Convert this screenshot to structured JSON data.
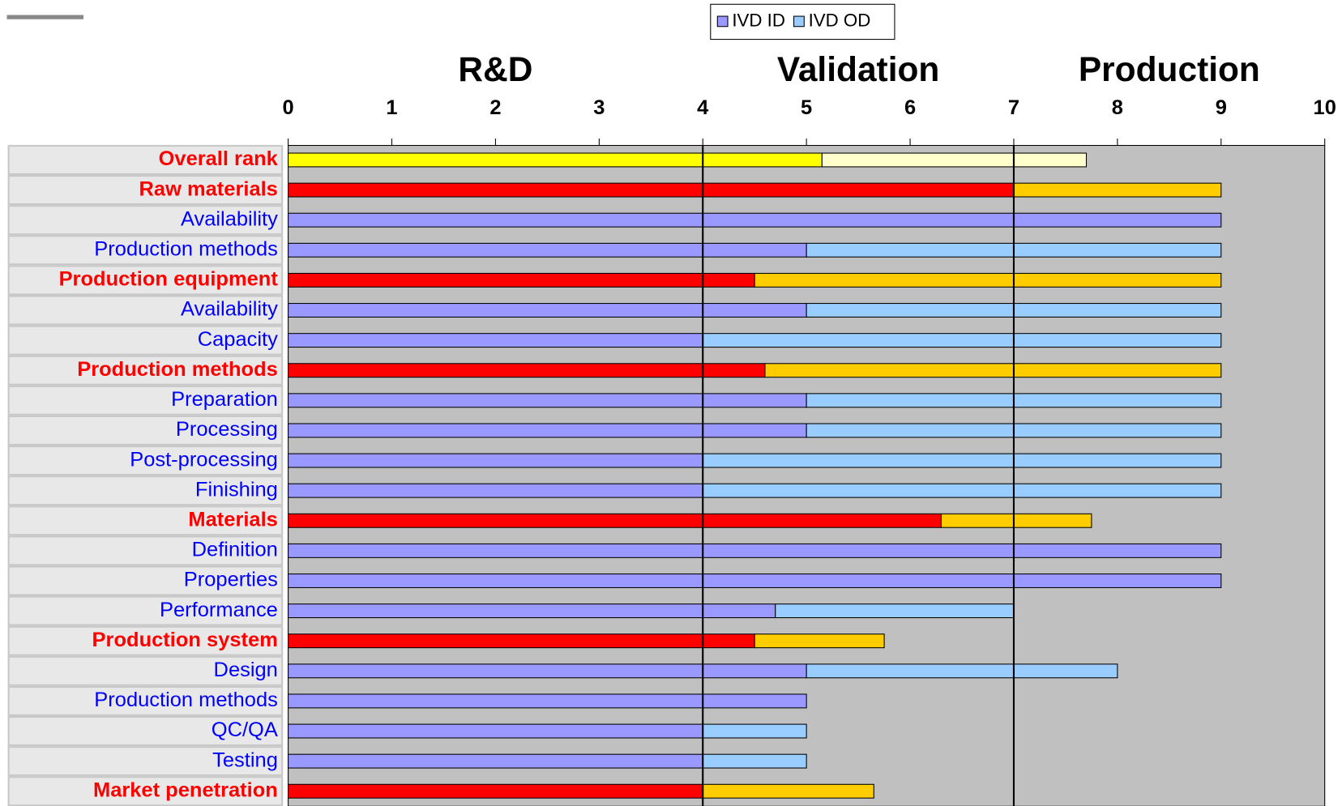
{
  "chart_data": {
    "type": "stacked_barh",
    "categories": [
      "Overall rank",
      "Raw materials",
      "Availability",
      "Production methods",
      "Production equipment",
      "Availability",
      "Capacity",
      "Production methods",
      "Preparation",
      "Processing",
      "Post-processing",
      "Finishing",
      "Materials",
      "Definition",
      "Properties",
      "Performance",
      "Production system",
      "Design",
      "Production methods",
      "QC/QA",
      "Testing",
      "Market penetration"
    ],
    "category_colors": [
      "#ff0000",
      "#ff0000",
      "#0000ff",
      "#0000ff",
      "#ff0000",
      "#0000ff",
      "#0000ff",
      "#ff0000",
      "#0000ff",
      "#0000ff",
      "#0000ff",
      "#0000ff",
      "#ff0000",
      "#0000ff",
      "#0000ff",
      "#0000ff",
      "#ff0000",
      "#0000ff",
      "#0000ff",
      "#0000ff",
      "#0000ff",
      "#ff0000"
    ],
    "series": [
      {
        "name": "IVD ID",
        "color": "#9999ff",
        "values": [
          5.15,
          7,
          9,
          5,
          4.5,
          5,
          4,
          4.6,
          5,
          5,
          4,
          4,
          6.3,
          9,
          9,
          4.7,
          4.5,
          5,
          5,
          4,
          4,
          4
        ],
        "colors": [
          "#ffff00",
          "#ff0000",
          "#9999ff",
          "#9999ff",
          "#ff0000",
          "#9999ff",
          "#9999ff",
          "#ff0000",
          "#9999ff",
          "#9999ff",
          "#9999ff",
          "#9999ff",
          "#ff0000",
          "#9999ff",
          "#9999ff",
          "#9999ff",
          "#ff0000",
          "#9999ff",
          "#9999ff",
          "#9999ff",
          "#9999ff",
          "#ff0000"
        ]
      },
      {
        "name": "IVD OD",
        "color": "#99ccff",
        "values": [
          2.55,
          2,
          0,
          4,
          4.5,
          4,
          5,
          4.4,
          4,
          4,
          5,
          5,
          1.45,
          0,
          0,
          2.3,
          1.25,
          3,
          0,
          1,
          1,
          1.65
        ],
        "colors": [
          "#ffffcc",
          "#ffcc00",
          "#99ccff",
          "#99ccff",
          "#ffcc00",
          "#99ccff",
          "#99ccff",
          "#ffcc00",
          "#99ccff",
          "#99ccff",
          "#99ccff",
          "#99ccff",
          "#ffcc00",
          "#99ccff",
          "#99ccff",
          "#99ccff",
          "#ffcc00",
          "#99ccff",
          "#99ccff",
          "#99ccff",
          "#99ccff",
          "#ffcc00"
        ]
      }
    ],
    "phases": [
      {
        "label": "R&D",
        "start": 0,
        "end": 4
      },
      {
        "label": "Validation",
        "start": 4,
        "end": 7
      },
      {
        "label": "Production",
        "start": 7,
        "end": 10
      }
    ],
    "xlim": [
      0,
      10
    ],
    "xticks": [
      0,
      1,
      2,
      3,
      4,
      5,
      6,
      7,
      8,
      9,
      10
    ],
    "plot_background": "#c0c0c0"
  }
}
